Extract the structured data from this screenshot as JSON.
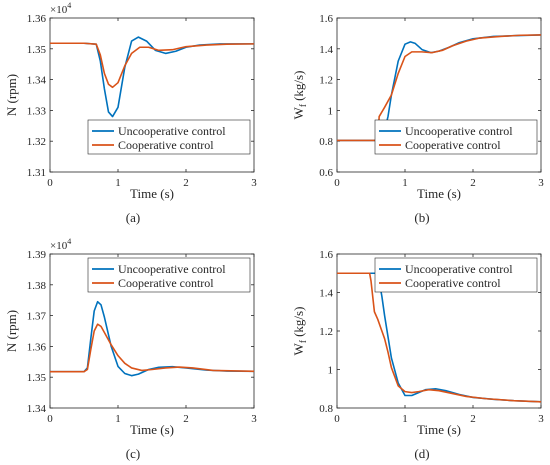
{
  "colors": {
    "uncooperative": "#0072BD",
    "cooperative": "#D95319",
    "axis": "#262626",
    "background": "#ffffff"
  },
  "chart_data": [
    {
      "id": "a",
      "type": "line",
      "caption": "(a)",
      "xlabel": "Time (s)",
      "ylabel": "N (rpm)",
      "exponent_label": "×10",
      "exponent_power": "4",
      "xlim": [
        0,
        3
      ],
      "ylim": [
        1.31,
        1.36
      ],
      "xticks": [
        "0",
        "1",
        "2",
        "3"
      ],
      "yticks": [
        "1.31",
        "1.32",
        "1.33",
        "1.34",
        "1.35",
        "1.36"
      ],
      "legend_position": "bottom-right",
      "legend": [
        "Uncooperative control",
        "Cooperative control"
      ],
      "series": [
        {
          "name": "Uncooperative control",
          "color": "#0072BD",
          "x": [
            0,
            0.5,
            0.68,
            0.74,
            0.8,
            0.86,
            0.92,
            1.0,
            1.1,
            1.2,
            1.3,
            1.42,
            1.55,
            1.7,
            1.85,
            2.0,
            2.2,
            2.5,
            3.0
          ],
          "y": [
            1.3518,
            1.3518,
            1.3515,
            1.346,
            1.337,
            1.3295,
            1.328,
            1.331,
            1.344,
            1.3525,
            1.3538,
            1.3525,
            1.3495,
            1.3485,
            1.3492,
            1.3505,
            1.3512,
            1.3516,
            1.3516
          ]
        },
        {
          "name": "Cooperative control",
          "color": "#D95319",
          "x": [
            0,
            0.5,
            0.68,
            0.74,
            0.8,
            0.86,
            0.92,
            1.0,
            1.1,
            1.2,
            1.32,
            1.45,
            1.6,
            1.8,
            2.0,
            2.3,
            2.6,
            3.0
          ],
          "y": [
            1.3518,
            1.3518,
            1.3515,
            1.348,
            1.342,
            1.3385,
            1.3375,
            1.339,
            1.3445,
            1.3485,
            1.3505,
            1.3505,
            1.3495,
            1.3497,
            1.3507,
            1.3512,
            1.3515,
            1.3516
          ]
        }
      ]
    },
    {
      "id": "b",
      "type": "line",
      "caption": "(b)",
      "xlabel": "Time (s)",
      "ylabel": "W",
      "ylabel_sub": "f",
      "ylabel_rest": " (kg/s)",
      "xlim": [
        0,
        3
      ],
      "ylim": [
        0.6,
        1.6
      ],
      "xticks": [
        "0",
        "1",
        "2",
        "3"
      ],
      "yticks": [
        "0.6",
        "0.8",
        "1",
        "1.2",
        "1.4",
        "1.6"
      ],
      "legend_position": "bottom-right",
      "legend": [
        "Uncooperative control",
        "Cooperative control"
      ],
      "series": [
        {
          "name": "Uncooperative control",
          "color": "#0072BD",
          "x": [
            0,
            0.4,
            0.68,
            0.7,
            0.75,
            0.8,
            0.9,
            1.0,
            1.08,
            1.15,
            1.25,
            1.38,
            1.5,
            1.65,
            1.8,
            2.0,
            2.3,
            2.6,
            3.0
          ],
          "y": [
            0.805,
            0.805,
            0.805,
            0.87,
            0.96,
            1.1,
            1.32,
            1.43,
            1.445,
            1.435,
            1.395,
            1.375,
            1.385,
            1.41,
            1.44,
            1.465,
            1.48,
            1.485,
            1.49
          ]
        },
        {
          "name": "Cooperative control",
          "color": "#D95319",
          "x": [
            0,
            0.4,
            0.6,
            0.62,
            0.7,
            0.8,
            0.9,
            1.0,
            1.1,
            1.25,
            1.4,
            1.55,
            1.7,
            1.9,
            2.1,
            2.4,
            2.7,
            3.0
          ],
          "y": [
            0.805,
            0.805,
            0.805,
            0.96,
            1.02,
            1.1,
            1.24,
            1.35,
            1.38,
            1.38,
            1.375,
            1.39,
            1.42,
            1.45,
            1.47,
            1.48,
            1.488,
            1.49
          ]
        }
      ]
    },
    {
      "id": "c",
      "type": "line",
      "caption": "(c)",
      "xlabel": "Time (s)",
      "ylabel": "N (rpm)",
      "exponent_label": "×10",
      "exponent_power": "4",
      "xlim": [
        0,
        3
      ],
      "ylim": [
        1.34,
        1.39
      ],
      "xticks": [
        "0",
        "1",
        "2",
        "3"
      ],
      "yticks": [
        "1.34",
        "1.35",
        "1.36",
        "1.37",
        "1.38",
        "1.39"
      ],
      "legend_position": "top-right",
      "legend": [
        "Uncooperative control",
        "Cooperative control"
      ],
      "series": [
        {
          "name": "Uncooperative control",
          "color": "#0072BD",
          "x": [
            0,
            0.5,
            0.55,
            0.6,
            0.65,
            0.7,
            0.75,
            0.8,
            0.9,
            1.0,
            1.1,
            1.2,
            1.3,
            1.45,
            1.6,
            1.8,
            2.0,
            2.3,
            2.6,
            3.0
          ],
          "y": [
            1.3518,
            1.3518,
            1.353,
            1.3625,
            1.3715,
            1.3745,
            1.3735,
            1.3695,
            1.36,
            1.3535,
            1.3512,
            1.3505,
            1.351,
            1.3525,
            1.3532,
            1.3534,
            1.353,
            1.3523,
            1.352,
            1.3519
          ]
        },
        {
          "name": "Cooperative control",
          "color": "#D95319",
          "x": [
            0,
            0.5,
            0.55,
            0.6,
            0.65,
            0.7,
            0.75,
            0.8,
            0.9,
            1.0,
            1.1,
            1.2,
            1.35,
            1.5,
            1.7,
            1.9,
            2.1,
            2.4,
            3.0
          ],
          "y": [
            1.3518,
            1.3518,
            1.3525,
            1.359,
            1.365,
            1.3672,
            1.3665,
            1.3645,
            1.3605,
            1.357,
            1.3545,
            1.353,
            1.3522,
            1.3525,
            1.353,
            1.3533,
            1.353,
            1.3522,
            1.3519
          ]
        }
      ]
    },
    {
      "id": "d",
      "type": "line",
      "caption": "(d)",
      "xlabel": "Time (s)",
      "ylabel": "W",
      "ylabel_sub": "f",
      "ylabel_rest": " (kg/s)",
      "xlim": [
        0,
        3
      ],
      "ylim": [
        0.8,
        1.6
      ],
      "xticks": [
        "0",
        "1",
        "2",
        "3"
      ],
      "yticks": [
        "0.8",
        "1",
        "1.2",
        "1.4",
        "1.6"
      ],
      "legend_position": "top-right",
      "legend": [
        "Uncooperative control",
        "Cooperative control"
      ],
      "series": [
        {
          "name": "Uncooperative control",
          "color": "#0072BD",
          "x": [
            0,
            0.5,
            0.6,
            0.62,
            0.66,
            0.7,
            0.75,
            0.8,
            0.9,
            1.0,
            1.1,
            1.2,
            1.3,
            1.45,
            1.6,
            1.8,
            2.0,
            2.3,
            2.6,
            3.0
          ],
          "y": [
            1.5,
            1.5,
            1.5,
            1.46,
            1.38,
            1.28,
            1.17,
            1.06,
            0.93,
            0.865,
            0.865,
            0.88,
            0.895,
            0.9,
            0.89,
            0.87,
            0.855,
            0.845,
            0.838,
            0.832
          ]
        },
        {
          "name": "Cooperative control",
          "color": "#D95319",
          "x": [
            0,
            0.48,
            0.5,
            0.55,
            0.6,
            0.65,
            0.7,
            0.75,
            0.8,
            0.9,
            1.0,
            1.1,
            1.2,
            1.35,
            1.5,
            1.7,
            1.9,
            2.2,
            2.6,
            3.0
          ],
          "y": [
            1.5,
            1.5,
            1.46,
            1.3,
            1.26,
            1.21,
            1.16,
            1.09,
            1.01,
            0.915,
            0.885,
            0.88,
            0.885,
            0.895,
            0.89,
            0.875,
            0.86,
            0.848,
            0.838,
            0.832
          ]
        }
      ]
    }
  ]
}
